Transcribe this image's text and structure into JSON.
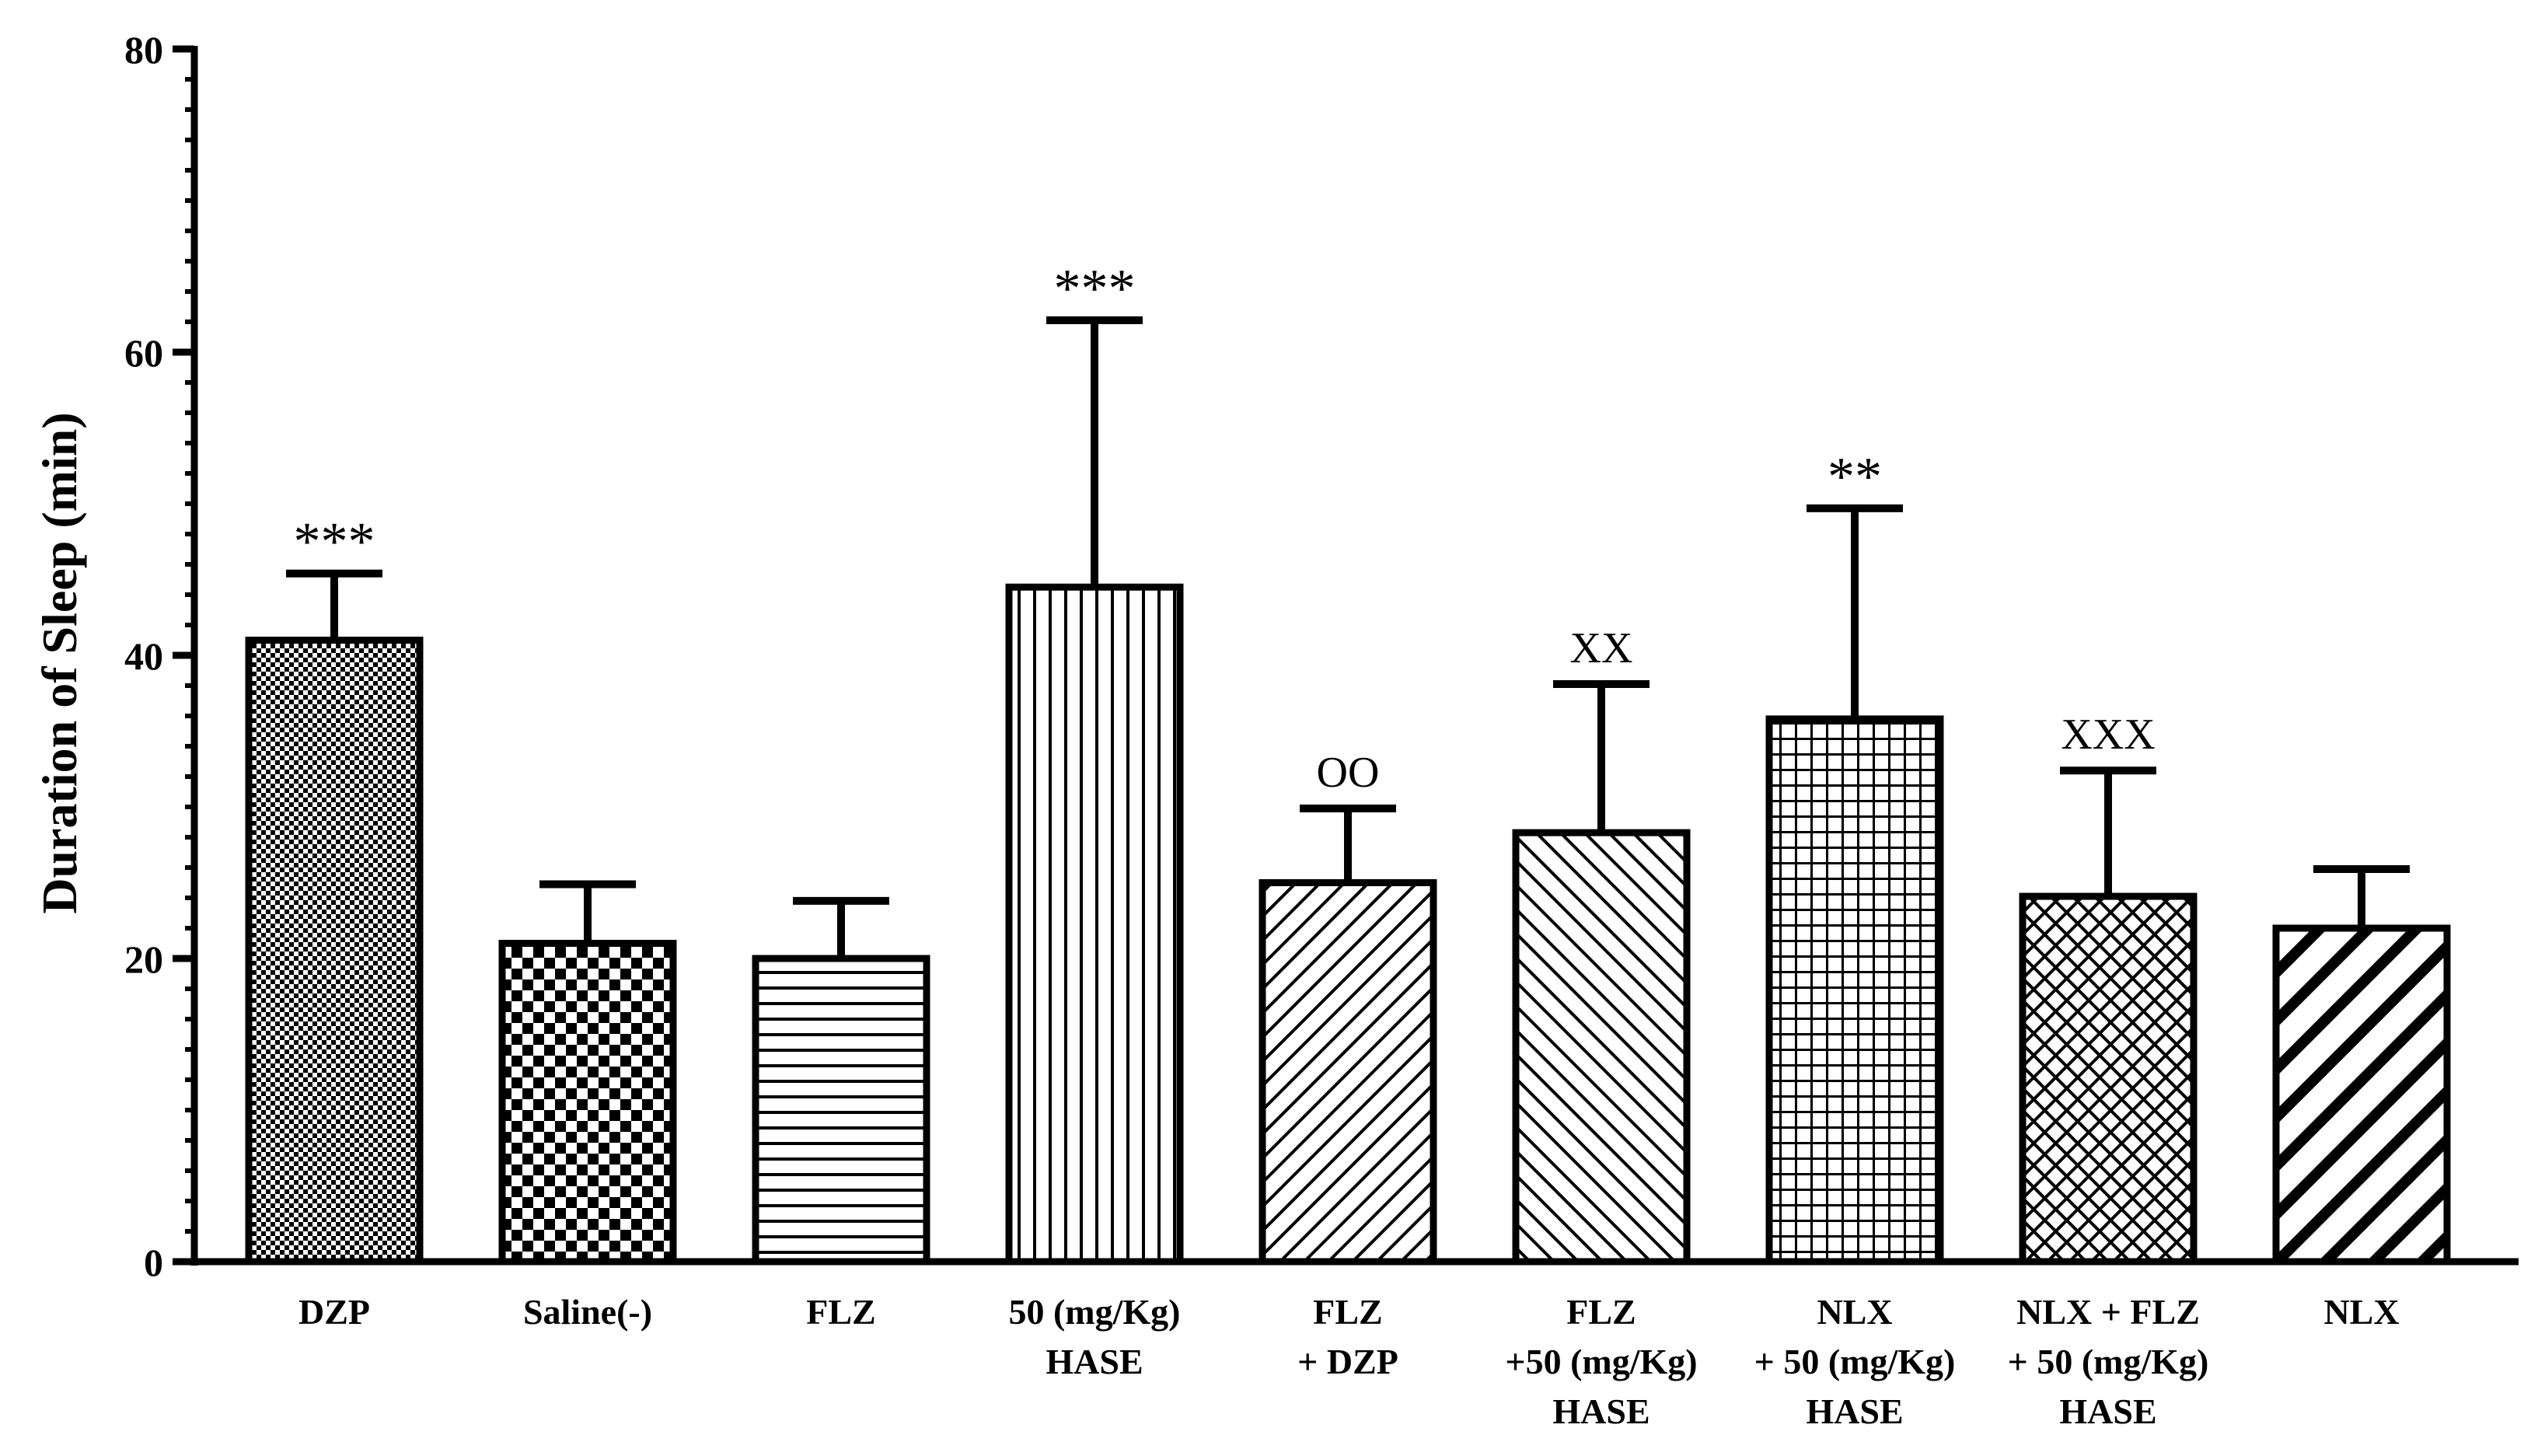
{
  "chart_data": {
    "type": "bar",
    "title": "",
    "xlabel": "",
    "ylabel": "Duration of Sleep (min)",
    "ylim": [
      0,
      80
    ],
    "y_major_ticks": [
      0,
      20,
      40,
      60,
      80
    ],
    "y_tick_labels": [
      "0",
      "20",
      "40",
      "60",
      "80"
    ],
    "y_minor_step": 2,
    "categories": [
      {
        "lines": [
          "DZP"
        ],
        "value": 41,
        "error": 4.4,
        "annotation": "***",
        "pattern": "checker-fine"
      },
      {
        "lines": [
          "Saline(-)"
        ],
        "value": 21,
        "error": 3.9,
        "annotation": "",
        "pattern": "checker-coarse"
      },
      {
        "lines": [
          "FLZ"
        ],
        "value": 20,
        "error": 3.8,
        "annotation": "",
        "pattern": "horizontal"
      },
      {
        "lines": [
          "50 (mg/Kg)",
          "HASE"
        ],
        "value": 44.5,
        "error": 17.6,
        "annotation": "***",
        "pattern": "vertical"
      },
      {
        "lines": [
          "FLZ",
          "+ DZP"
        ],
        "value": 25,
        "error": 4.9,
        "annotation": "OO",
        "pattern": "diag-up"
      },
      {
        "lines": [
          "FLZ",
          "+50 (mg/Kg)",
          "HASE"
        ],
        "value": 28.3,
        "error": 9.8,
        "annotation": "XX",
        "pattern": "diag-down"
      },
      {
        "lines": [
          "NLX",
          "+ 50 (mg/Kg)",
          "HASE"
        ],
        "value": 35.8,
        "error": 13.9,
        "annotation": "**",
        "pattern": "grid"
      },
      {
        "lines": [
          "NLX + FLZ",
          "+ 50 (mg/Kg)",
          "HASE"
        ],
        "value": 24.1,
        "error": 8.3,
        "annotation": "XXX",
        "pattern": "crosshatch"
      },
      {
        "lines": [
          "NLX"
        ],
        "value": 22,
        "error": 3.9,
        "annotation": "",
        "pattern": "diag-down-bold"
      }
    ]
  }
}
